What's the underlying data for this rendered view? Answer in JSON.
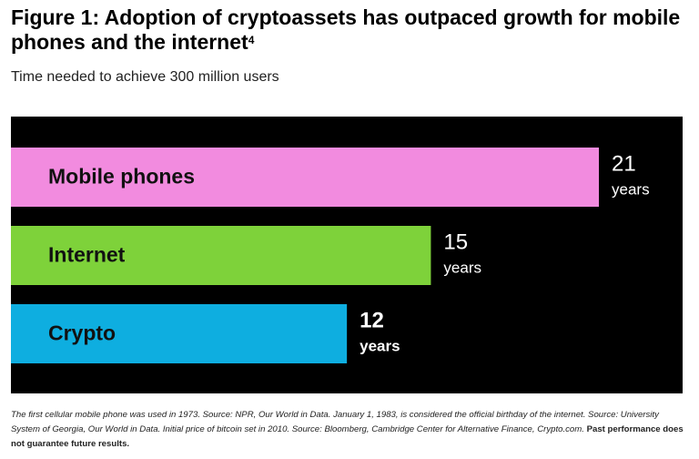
{
  "chart_data": {
    "type": "hbar",
    "title": "Figure 1: Adoption of cryptoassets has outpaced growth for mobile phones and the internet",
    "title_footnote": "4",
    "subtitle": "Time needed to achieve 300 million users",
    "categories": [
      "Mobile phones",
      "Internet",
      "Crypto"
    ],
    "values": [
      21,
      15,
      12
    ],
    "value_unit": "years",
    "colors": [
      "#f28bdf",
      "#7ed23a",
      "#0eaee0"
    ],
    "background": "#000000",
    "footnote": "The first cellular mobile phone was used in 1973. Source: NPR, Our World in Data. January 1, 1983, is considered the official birthday of the internet. Source: University System of Georgia, Our World in Data. Initial price of bitcoin set in 2010. Source: Bloomberg, Cambridge Center for Alternative Finance, Crypto.com.",
    "footnote_bold": "Past performance does not guarantee future results."
  }
}
